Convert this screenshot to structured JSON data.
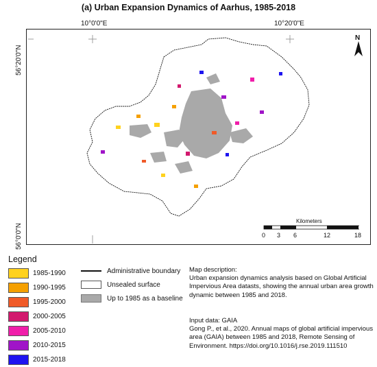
{
  "title": "(a)  Urban Expansion Dynamics of Aarhus, 1985-2018",
  "map": {
    "coords": {
      "lon_left": "10°0'0\"E",
      "lon_right": "10°20'0\"E",
      "lat_top": "56°20'0\"N",
      "lat_bottom": "56°0'0\"N"
    },
    "north_label": "N",
    "scale": {
      "title": "Kilometers",
      "ticks": [
        "0",
        "3",
        "6",
        "12",
        "18"
      ]
    },
    "colors": {
      "boundary": "#111111",
      "baseline": "#a9a9a9",
      "unsealed": "#ffffff"
    }
  },
  "legend": {
    "title": "Legend",
    "periods": [
      {
        "label": "1985-1990",
        "color": "#ffd21e"
      },
      {
        "label": "1990-1995",
        "color": "#f5a000"
      },
      {
        "label": "1995-2000",
        "color": "#f05a28"
      },
      {
        "label": "2000-2005",
        "color": "#d2196e"
      },
      {
        "label": "2005-2010",
        "color": "#f01eaa"
      },
      {
        "label": "2010-2015",
        "color": "#a014c8"
      },
      {
        "label": "2015-2018",
        "color": "#1e14f0"
      }
    ],
    "others": {
      "boundary": "Administrative boundary",
      "unsealed": "Unsealed surface",
      "baseline": "Up to 1985 as a baseline"
    }
  },
  "description": {
    "heading": "Map description:",
    "text": "Urban expansion dynamics analysis based on Global Artificial Impervious Area datasts, showing the annual urban area growth dynamic between 1985 and 2018."
  },
  "input_data": {
    "heading": "Input data: GAIA",
    "text": "Gong P., et al., 2020. Annual maps of global artificial impervious area (GAIA) between 1985 and 2018, Remote Sensing of Environment. https://doi.org/10.1016/j.rse.2019.111510"
  }
}
